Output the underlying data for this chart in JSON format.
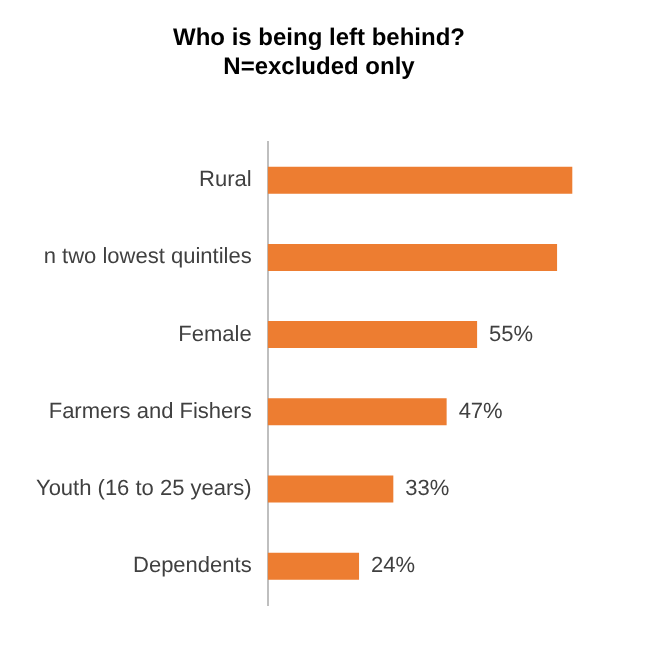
{
  "chart_data": {
    "type": "bar",
    "orientation": "horizontal",
    "title": "Who is being left behind?",
    "subtitle": "N=excluded only",
    "categories": [
      "Rural",
      "n two lowest quintiles",
      "Female",
      "Farmers and Fishers",
      "Youth (16 to 25 years)",
      "Dependents"
    ],
    "values": [
      80,
      76,
      55,
      47,
      33,
      24
    ],
    "value_labels": [
      null,
      null,
      "55%",
      "47%",
      "33%",
      "24%"
    ],
    "color": "#ed7d31",
    "grid": false,
    "legend": false
  }
}
